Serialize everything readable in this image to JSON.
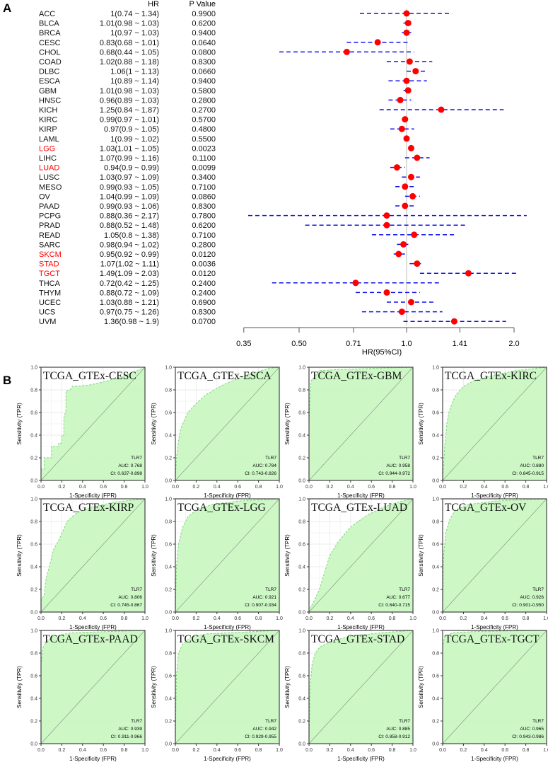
{
  "chart_data": [
    {
      "type": "forest",
      "panel_label": "A",
      "col_headers": {
        "hr": "HR",
        "p": "P Value"
      },
      "xlabel": "HR(95%CI)",
      "x_scale": "log2",
      "x_ticks": [
        "0.35",
        "0.50",
        "0.71",
        "1.0",
        "1.41",
        "2.0"
      ],
      "x_tick_values": [
        0.35,
        0.5,
        0.71,
        1.0,
        1.41,
        2.0
      ],
      "reference": 1.0,
      "colors": {
        "point": "#ff0000",
        "ci": "#1010ee",
        "significant_label": "#ff0000"
      },
      "rows": [
        {
          "name": "ACC",
          "hr": 1,
          "lo": 0.74,
          "hi": 1.34,
          "text": "1(0.74 ~ 1.34)",
          "p": "0.9900",
          "sig": false
        },
        {
          "name": "BLCA",
          "hr": 1.01,
          "lo": 0.98,
          "hi": 1.03,
          "text": "1.01(0.98 ~ 1.03)",
          "p": "0.6200",
          "sig": false
        },
        {
          "name": "BRCA",
          "hr": 1,
          "lo": 0.97,
          "hi": 1.03,
          "text": "1(0.97 ~ 1.03)",
          "p": "0.9400",
          "sig": false
        },
        {
          "name": "CESC",
          "hr": 0.83,
          "lo": 0.68,
          "hi": 1.01,
          "text": "0.83(0.68 ~ 1.01)",
          "p": "0.0640",
          "sig": false
        },
        {
          "name": "CHOL",
          "hr": 0.68,
          "lo": 0.44,
          "hi": 1.05,
          "text": "0.68(0.44 ~ 1.05)",
          "p": "0.0800",
          "sig": false
        },
        {
          "name": "COAD",
          "hr": 1.02,
          "lo": 0.88,
          "hi": 1.18,
          "text": "1.02(0.88 ~ 1.18)",
          "p": "0.8300",
          "sig": false
        },
        {
          "name": "DLBC",
          "hr": 1.06,
          "lo": 1,
          "hi": 1.13,
          "text": "1.06(1 ~ 1.13)",
          "p": "0.0660",
          "sig": false
        },
        {
          "name": "ESCA",
          "hr": 1,
          "lo": 0.89,
          "hi": 1.14,
          "text": "1(0.89 ~ 1.14)",
          "p": "0.9400",
          "sig": false
        },
        {
          "name": "GBM",
          "hr": 1.01,
          "lo": 0.98,
          "hi": 1.03,
          "text": "1.01(0.98 ~ 1.03)",
          "p": "0.5800",
          "sig": false
        },
        {
          "name": "HNSC",
          "hr": 0.96,
          "lo": 0.89,
          "hi": 1.03,
          "text": "0.96(0.89 ~ 1.03)",
          "p": "0.2800",
          "sig": false
        },
        {
          "name": "KICH",
          "hr": 1.25,
          "lo": 0.84,
          "hi": 1.87,
          "text": "1.25(0.84 ~ 1.87)",
          "p": "0.2700",
          "sig": false
        },
        {
          "name": "KIRC",
          "hr": 0.99,
          "lo": 0.97,
          "hi": 1.01,
          "text": "0.99(0.97 ~ 1.01)",
          "p": "0.5700",
          "sig": false
        },
        {
          "name": "KIRP",
          "hr": 0.97,
          "lo": 0.9,
          "hi": 1.05,
          "text": "0.97(0.9 ~ 1.05)",
          "p": "0.4800",
          "sig": false
        },
        {
          "name": "LAML",
          "hr": 1,
          "lo": 0.99,
          "hi": 1.02,
          "text": "1(0.99 ~ 1.02)",
          "p": "0.5500",
          "sig": false
        },
        {
          "name": "LGG",
          "hr": 1.03,
          "lo": 1.01,
          "hi": 1.05,
          "text": "1.03(1.01 ~ 1.05)",
          "p": "0.0023",
          "sig": true
        },
        {
          "name": "LIHC",
          "hr": 1.07,
          "lo": 0.99,
          "hi": 1.16,
          "text": "1.07(0.99 ~ 1.16)",
          "p": "0.1100",
          "sig": false
        },
        {
          "name": "LUAD",
          "hr": 0.94,
          "lo": 0.9,
          "hi": 0.99,
          "text": "0.94(0.9 ~ 0.99)",
          "p": "0.0099",
          "sig": true
        },
        {
          "name": "LUSC",
          "hr": 1.03,
          "lo": 0.97,
          "hi": 1.09,
          "text": "1.03(0.97 ~ 1.09)",
          "p": "0.3400",
          "sig": false
        },
        {
          "name": "MESO",
          "hr": 0.99,
          "lo": 0.93,
          "hi": 1.05,
          "text": "0.99(0.93 ~ 1.05)",
          "p": "0.7100",
          "sig": false
        },
        {
          "name": "OV",
          "hr": 1.04,
          "lo": 0.99,
          "hi": 1.09,
          "text": "1.04(0.99 ~ 1.09)",
          "p": "0.0860",
          "sig": false
        },
        {
          "name": "PAAD",
          "hr": 0.99,
          "lo": 0.93,
          "hi": 1.06,
          "text": "0.99(0.93 ~ 1.06)",
          "p": "0.8300",
          "sig": false
        },
        {
          "name": "PCPG",
          "hr": 0.88,
          "lo": 0.36,
          "hi": 2.17,
          "text": "0.88(0.36 ~ 2.17)",
          "p": "0.7800",
          "sig": false
        },
        {
          "name": "PRAD",
          "hr": 0.88,
          "lo": 0.52,
          "hi": 1.48,
          "text": "0.88(0.52 ~ 1.48)",
          "p": "0.6200",
          "sig": false
        },
        {
          "name": "READ",
          "hr": 1.05,
          "lo": 0.8,
          "hi": 1.38,
          "text": "1.05(0.8 ~ 1.38)",
          "p": "0.7100",
          "sig": false
        },
        {
          "name": "SARC",
          "hr": 0.98,
          "lo": 0.94,
          "hi": 1.02,
          "text": "0.98(0.94 ~ 1.02)",
          "p": "0.2800",
          "sig": false
        },
        {
          "name": "SKCM",
          "hr": 0.95,
          "lo": 0.92,
          "hi": 0.99,
          "text": "0.95(0.92 ~ 0.99)",
          "p": "0.0120",
          "sig": true
        },
        {
          "name": "STAD",
          "hr": 1.07,
          "lo": 1.02,
          "hi": 1.11,
          "text": "1.07(1.02 ~ 1.11)",
          "p": "0.0036",
          "sig": true
        },
        {
          "name": "TGCT",
          "hr": 1.49,
          "lo": 1.09,
          "hi": 2.03,
          "text": "1.49(1.09 ~ 2.03)",
          "p": "0.0120",
          "sig": true
        },
        {
          "name": "THCA",
          "hr": 0.72,
          "lo": 0.42,
          "hi": 1.25,
          "text": "0.72(0.42 ~ 1.25)",
          "p": "0.2400",
          "sig": false
        },
        {
          "name": "THYM",
          "hr": 0.88,
          "lo": 0.72,
          "hi": 1.09,
          "text": "0.88(0.72 ~ 1.09)",
          "p": "0.2400",
          "sig": false
        },
        {
          "name": "UCEC",
          "hr": 1.03,
          "lo": 0.88,
          "hi": 1.21,
          "text": "1.03(0.88 ~ 1.21)",
          "p": "0.6900",
          "sig": false
        },
        {
          "name": "UCS",
          "hr": 0.97,
          "lo": 0.75,
          "hi": 1.26,
          "text": "0.97(0.75 ~ 1.26)",
          "p": "0.8300",
          "sig": false
        },
        {
          "name": "UVM",
          "hr": 1.36,
          "lo": 0.98,
          "hi": 1.9,
          "text": "1.36(0.98 ~ 1.9)",
          "p": "0.0700",
          "sig": false
        }
      ]
    },
    {
      "type": "roc",
      "panel_label": "B",
      "xlabel": "1-Specificity (FPR)",
      "ylabel": "Sensitivity (TPR)",
      "ticks": [
        "0.0",
        "0.2",
        "0.4",
        "0.6",
        "0.8",
        "1.0"
      ],
      "xlim": [
        0,
        1
      ],
      "ylim": [
        0,
        1
      ],
      "gene": "TLR7",
      "colors": {
        "fill": "#c8f7c0",
        "curve": "#7fd67a",
        "diagonal": "#8a9a88"
      },
      "panels": [
        {
          "title": "TCGA_GTEx-CESC",
          "auc": "AUC: 0.768",
          "ci": "CI: 0.637-0.898",
          "points": [
            [
              0,
              0
            ],
            [
              0,
              0.1
            ],
            [
              0.03,
              0.1
            ],
            [
              0.03,
              0.2
            ],
            [
              0.1,
              0.2
            ],
            [
              0.1,
              0.3
            ],
            [
              0.17,
              0.3
            ],
            [
              0.17,
              0.33
            ],
            [
              0.2,
              0.33
            ],
            [
              0.2,
              0.4
            ],
            [
              0.22,
              0.4
            ],
            [
              0.22,
              0.55
            ],
            [
              0.24,
              0.62
            ],
            [
              0.24,
              0.79
            ],
            [
              0.28,
              0.8
            ],
            [
              0.3,
              0.83
            ],
            [
              0.45,
              0.84
            ],
            [
              0.6,
              0.87
            ],
            [
              0.75,
              0.91
            ],
            [
              0.85,
              0.94
            ],
            [
              0.95,
              0.98
            ],
            [
              1,
              1
            ]
          ]
        },
        {
          "title": "TCGA_GTEx-ESCA",
          "auc": "AUC: 0.784",
          "ci": "CI: 0.743-0.826",
          "points": [
            [
              0,
              0
            ],
            [
              0.01,
              0.2
            ],
            [
              0.03,
              0.35
            ],
            [
              0.05,
              0.45
            ],
            [
              0.08,
              0.52
            ],
            [
              0.12,
              0.6
            ],
            [
              0.2,
              0.68
            ],
            [
              0.3,
              0.76
            ],
            [
              0.45,
              0.84
            ],
            [
              0.6,
              0.9
            ],
            [
              0.75,
              0.95
            ],
            [
              0.9,
              0.99
            ],
            [
              1,
              1
            ]
          ]
        },
        {
          "title": "TCGA_GTEx-GBM",
          "auc": "AUC: 0.958",
          "ci": "CI: 0.944-0.972",
          "points": [
            [
              0,
              0
            ],
            [
              0,
              0.5
            ],
            [
              0.01,
              0.75
            ],
            [
              0.02,
              0.88
            ],
            [
              0.05,
              0.91
            ],
            [
              0.1,
              0.97
            ],
            [
              0.3,
              0.98
            ],
            [
              0.6,
              0.99
            ],
            [
              1,
              1
            ]
          ]
        },
        {
          "title": "TCGA_GTEx-KIRC",
          "auc": "AUC: 0.880",
          "ci": "CI: 0.845-0.915",
          "points": [
            [
              0,
              0
            ],
            [
              0.02,
              0.3
            ],
            [
              0.04,
              0.5
            ],
            [
              0.06,
              0.6
            ],
            [
              0.09,
              0.68
            ],
            [
              0.13,
              0.76
            ],
            [
              0.2,
              0.83
            ],
            [
              0.3,
              0.88
            ],
            [
              0.5,
              0.93
            ],
            [
              0.7,
              0.97
            ],
            [
              1,
              1
            ]
          ]
        },
        {
          "title": "TCGA_GTEx-KIRP",
          "auc": "AUC: 0.806",
          "ci": "CI: 0.745-0.867",
          "points": [
            [
              0,
              0
            ],
            [
              0,
              0.1
            ],
            [
              0.03,
              0.15
            ],
            [
              0.05,
              0.3
            ],
            [
              0.08,
              0.4
            ],
            [
              0.12,
              0.55
            ],
            [
              0.18,
              0.65
            ],
            [
              0.25,
              0.8
            ],
            [
              0.35,
              0.88
            ],
            [
              0.5,
              0.93
            ],
            [
              0.7,
              0.97
            ],
            [
              1,
              1
            ]
          ]
        },
        {
          "title": "TCGA_GTEx-LGG",
          "auc": "AUC: 0.921",
          "ci": "CI: 0.907-0.934",
          "points": [
            [
              0,
              0
            ],
            [
              0.01,
              0.4
            ],
            [
              0.03,
              0.6
            ],
            [
              0.07,
              0.75
            ],
            [
              0.12,
              0.84
            ],
            [
              0.2,
              0.9
            ],
            [
              0.35,
              0.95
            ],
            [
              0.6,
              0.98
            ],
            [
              1,
              1
            ]
          ]
        },
        {
          "title": "TCGA_GTEx-LUAD",
          "auc": "AUC: 0.677",
          "ci": "CI: 0.640-0.715",
          "points": [
            [
              0,
              0
            ],
            [
              0.02,
              0.05
            ],
            [
              0.05,
              0.1
            ],
            [
              0.1,
              0.2
            ],
            [
              0.15,
              0.35
            ],
            [
              0.2,
              0.5
            ],
            [
              0.28,
              0.62
            ],
            [
              0.4,
              0.75
            ],
            [
              0.55,
              0.85
            ],
            [
              0.7,
              0.92
            ],
            [
              0.85,
              0.97
            ],
            [
              1,
              1
            ]
          ]
        },
        {
          "title": "TCGA_GTEx-OV",
          "auc": "AUC: 0.926",
          "ci": "CI: 0.901-0.950",
          "points": [
            [
              0,
              0
            ],
            [
              0.01,
              0.5
            ],
            [
              0.03,
              0.7
            ],
            [
              0.07,
              0.82
            ],
            [
              0.12,
              0.9
            ],
            [
              0.25,
              0.95
            ],
            [
              0.5,
              0.98
            ],
            [
              1,
              1
            ]
          ]
        },
        {
          "title": "TCGA_GTEx-PAAD",
          "auc": "AUC: 0.939",
          "ci": "CI: 0.911-0.966",
          "points": [
            [
              0,
              0
            ],
            [
              0,
              0.7
            ],
            [
              0.02,
              0.85
            ],
            [
              0.05,
              0.9
            ],
            [
              0.12,
              0.95
            ],
            [
              0.3,
              0.98
            ],
            [
              1,
              1
            ]
          ]
        },
        {
          "title": "TCGA_GTEx-SKCM",
          "auc": "AUC: 0.942",
          "ci": "CI: 0.929-0.955",
          "points": [
            [
              0,
              0
            ],
            [
              0.01,
              0.6
            ],
            [
              0.03,
              0.8
            ],
            [
              0.07,
              0.88
            ],
            [
              0.15,
              0.94
            ],
            [
              0.3,
              0.97
            ],
            [
              1,
              1
            ]
          ]
        },
        {
          "title": "TCGA_GTEx-STAD",
          "auc": "AUC: 0.885",
          "ci": "CI: 0.858-0.912",
          "points": [
            [
              0,
              0
            ],
            [
              0.01,
              0.5
            ],
            [
              0.03,
              0.7
            ],
            [
              0.06,
              0.8
            ],
            [
              0.1,
              0.85
            ],
            [
              0.2,
              0.9
            ],
            [
              0.4,
              0.95
            ],
            [
              0.7,
              0.98
            ],
            [
              1,
              1
            ]
          ]
        },
        {
          "title": "TCGA_GTEx-TGCT",
          "auc": "AUC: 0.965",
          "ci": "CI: 0.943-0.986",
          "points": [
            [
              0,
              0
            ],
            [
              0,
              0.85
            ],
            [
              0.02,
              0.95
            ],
            [
              0.1,
              0.98
            ],
            [
              0.3,
              0.99
            ],
            [
              1,
              1
            ]
          ]
        }
      ]
    }
  ]
}
